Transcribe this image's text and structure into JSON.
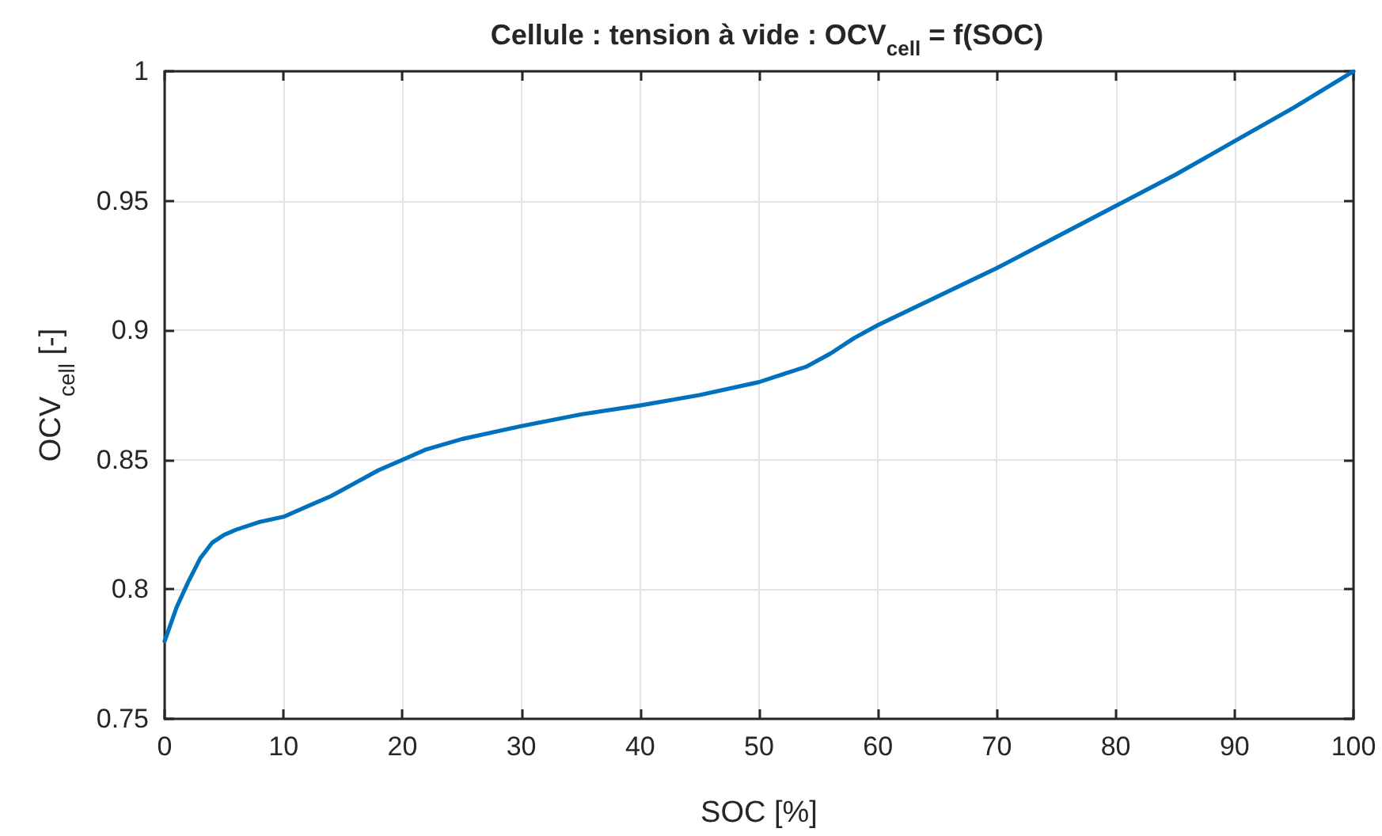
{
  "chart_data": {
    "type": "line",
    "title": "Cellule : tension à vide : OCV$_{cell}$ = f(SOC)",
    "xlabel": "SOC [%]",
    "ylabel": "OCV$_{cell}$ [-]",
    "x": [
      0,
      1,
      2,
      3,
      4,
      5,
      6,
      8,
      10,
      12,
      14,
      16,
      18,
      20,
      22,
      25,
      28,
      30,
      35,
      40,
      45,
      50,
      52,
      54,
      56,
      58,
      60,
      65,
      70,
      75,
      80,
      85,
      90,
      95,
      100
    ],
    "series": [
      {
        "color": "#0072bd",
        "values": [
          0.78,
          0.793,
          0.803,
          0.812,
          0.818,
          0.821,
          0.823,
          0.826,
          0.828,
          0.832,
          0.836,
          0.841,
          0.846,
          0.85,
          0.854,
          0.858,
          0.861,
          0.863,
          0.8675,
          0.871,
          0.875,
          0.88,
          0.883,
          0.886,
          0.891,
          0.897,
          0.902,
          0.913,
          0.924,
          0.936,
          0.948,
          0.96,
          0.973,
          0.986,
          1.0
        ]
      }
    ],
    "xlim": [
      0,
      100
    ],
    "xticks": [
      0,
      10,
      20,
      30,
      40,
      50,
      60,
      70,
      80,
      90,
      100
    ],
    "ylim": [
      0.75,
      1
    ],
    "yticks": [
      0.75,
      0.8,
      0.85,
      0.9,
      0.95,
      1
    ],
    "grid": true,
    "marker": "none",
    "line_style": "solid"
  }
}
